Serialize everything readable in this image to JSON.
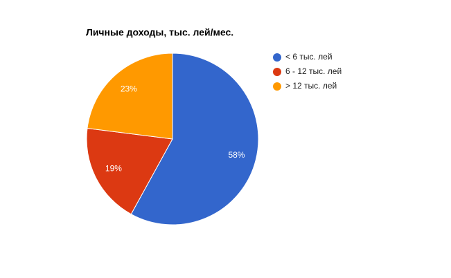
{
  "chart_data": {
    "type": "pie",
    "title": "Личные доходы, тыс. лей/мес.",
    "categories": [
      "< 6 тыс. лей",
      "6 - 12 тыс. лей",
      "> 12 тыс. лей"
    ],
    "values": [
      58,
      19,
      23
    ],
    "value_labels": [
      "58%",
      "19%",
      "23%"
    ],
    "colors": [
      "#3366cc",
      "#dc3912",
      "#ff9900"
    ],
    "legend": "right"
  }
}
